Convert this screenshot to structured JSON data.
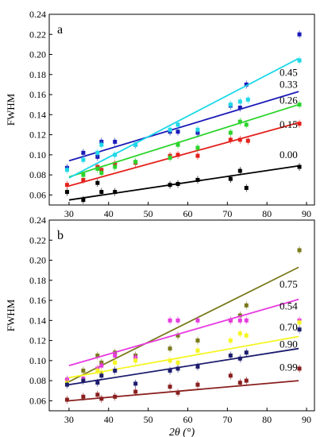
{
  "chart_data": [
    {
      "type": "scatter",
      "panel_label": "a",
      "ylabel": "FWHM",
      "xlim": [
        25,
        92
      ],
      "ylim": [
        0.05,
        0.24
      ],
      "xticks": [
        30,
        40,
        50,
        60,
        70,
        80,
        90
      ],
      "yticks": [
        0.06,
        0.08,
        0.1,
        0.12,
        0.14,
        0.16,
        0.18,
        0.2,
        0.22,
        0.24
      ],
      "series": [
        {
          "name": "0.00",
          "color": "#000000",
          "x": [
            29.5,
            33.6,
            37.2,
            38.2,
            41.6,
            55.5,
            57.5,
            62.5,
            70.8,
            73.2,
            74.8,
            88.2
          ],
          "y": [
            0.063,
            0.055,
            0.072,
            0.063,
            0.063,
            0.07,
            0.071,
            0.075,
            0.076,
            0.084,
            0.067,
            0.088
          ],
          "fit": [
            [
              30,
              0.055
            ],
            [
              88,
              0.089
            ]
          ]
        },
        {
          "name": "0.15",
          "color": "#e4211c",
          "x": [
            29.5,
            33.6,
            37.2,
            38.2,
            41.6,
            46.8,
            55.5,
            57.5,
            62.5,
            70.8,
            73.2,
            75.2,
            88.2
          ],
          "y": [
            0.07,
            0.075,
            0.088,
            0.085,
            0.091,
            0.092,
            0.099,
            0.1,
            0.099,
            0.115,
            0.115,
            0.114,
            0.131
          ],
          "fit": [
            [
              30,
              0.069
            ],
            [
              88,
              0.132
            ]
          ]
        },
        {
          "name": "0.26",
          "color": "#2bd42b",
          "x": [
            33.6,
            37.2,
            38.2,
            41.6,
            46.8,
            55.5,
            57.5,
            62.5,
            70.8,
            73.2,
            74.8,
            88.2
          ],
          "y": [
            0.08,
            0.086,
            0.082,
            0.088,
            0.093,
            0.097,
            0.11,
            0.107,
            0.122,
            0.133,
            0.13,
            0.15
          ],
          "fit": [
            [
              30,
              0.078
            ],
            [
              88,
              0.15
            ]
          ]
        },
        {
          "name": "0.33",
          "color": "#1a1ab8",
          "x": [
            29.5,
            33.6,
            37.2,
            38.2,
            41.6,
            46.8,
            55.5,
            57.5,
            62.5,
            70.8,
            73.2,
            74.8,
            88.2
          ],
          "y": [
            0.087,
            0.102,
            0.098,
            0.113,
            0.113,
            0.11,
            0.123,
            0.123,
            0.122,
            0.149,
            0.147,
            0.17,
            0.22
          ],
          "fit": [
            [
              30,
              0.094
            ],
            [
              88,
              0.163
            ]
          ]
        },
        {
          "name": "0.45",
          "color": "#1ed8e8",
          "x": [
            29.5,
            33.6,
            37.2,
            38.2,
            41.6,
            46.8,
            55.5,
            57.5,
            62.5,
            70.8,
            73.2,
            75.2,
            88.2
          ],
          "y": [
            0.085,
            0.095,
            0.102,
            0.11,
            0.1,
            0.11,
            0.125,
            0.13,
            0.125,
            0.15,
            0.153,
            0.155,
            0.194
          ],
          "fit": [
            [
              30,
              0.077
            ],
            [
              88,
              0.196
            ]
          ]
        }
      ]
    },
    {
      "type": "scatter",
      "panel_label": "b",
      "xlabel": "2θ (°)",
      "ylabel": "FWHM",
      "xlim": [
        25,
        92
      ],
      "ylim": [
        0.05,
        0.24
      ],
      "xticks": [
        30,
        40,
        50,
        60,
        70,
        80,
        90
      ],
      "yticks": [
        0.06,
        0.08,
        0.1,
        0.12,
        0.14,
        0.16,
        0.18,
        0.2,
        0.22,
        0.24
      ],
      "series": [
        {
          "name": "0.75",
          "color": "#7a7a1c",
          "x": [
            29.5,
            33.6,
            37.2,
            38.2,
            41.6,
            46.8,
            55.5,
            57.5,
            62.5,
            70.8,
            73.2,
            74.8,
            88.2
          ],
          "y": [
            0.081,
            0.09,
            0.105,
            0.098,
            0.108,
            0.105,
            0.112,
            0.125,
            0.12,
            0.14,
            0.145,
            0.155,
            0.21
          ],
          "fit": [
            [
              30,
              0.079
            ],
            [
              88,
              0.193
            ]
          ]
        },
        {
          "name": "0.54",
          "color": "#e83ae0",
          "x": [
            29.5,
            33.6,
            37.2,
            38.2,
            41.6,
            46.8,
            55.5,
            57.5,
            62.5,
            70.8,
            73.2,
            74.8,
            88.2
          ],
          "y": [
            0.081,
            0.082,
            0.092,
            0.095,
            0.105,
            0.103,
            0.14,
            0.14,
            0.14,
            0.14,
            0.14,
            0.14,
            0.14
          ],
          "fit": [
            [
              30,
              0.095
            ],
            [
              88,
              0.161
            ]
          ]
        },
        {
          "name": "0.70",
          "color": "#f5f523",
          "x": [
            29.5,
            33.6,
            37.2,
            38.2,
            41.6,
            46.8,
            55.5,
            57.5,
            62.5,
            70.8,
            73.2,
            74.8,
            88.2
          ],
          "y": [
            0.078,
            0.08,
            0.09,
            0.088,
            0.098,
            0.1,
            0.1,
            0.098,
            0.11,
            0.12,
            0.127,
            0.125,
            0.138
          ],
          "fit": [
            [
              30,
              0.083
            ],
            [
              88,
              0.124
            ]
          ]
        },
        {
          "name": "0.90",
          "color": "#1c1c6e",
          "x": [
            29.5,
            33.6,
            37.2,
            38.2,
            41.6,
            46.8,
            55.5,
            57.5,
            62.5,
            70.8,
            73.2,
            74.8,
            88.2
          ],
          "y": [
            0.076,
            0.08,
            0.078,
            0.085,
            0.09,
            0.077,
            0.09,
            0.092,
            0.094,
            0.105,
            0.102,
            0.108,
            0.131
          ],
          "fit": [
            [
              30,
              0.076
            ],
            [
              88,
              0.112
            ]
          ]
        },
        {
          "name": "0.99",
          "color": "#8a1f1f",
          "x": [
            29.5,
            33.6,
            37.2,
            38.2,
            41.6,
            46.8,
            55.5,
            57.5,
            62.5,
            70.8,
            73.2,
            74.8,
            88.2
          ],
          "y": [
            0.061,
            0.064,
            0.066,
            0.062,
            0.064,
            0.069,
            0.074,
            0.068,
            0.076,
            0.085,
            0.078,
            0.08,
            0.092
          ],
          "fit": [
            [
              30,
              0.06
            ],
            [
              88,
              0.08
            ]
          ]
        }
      ]
    }
  ]
}
